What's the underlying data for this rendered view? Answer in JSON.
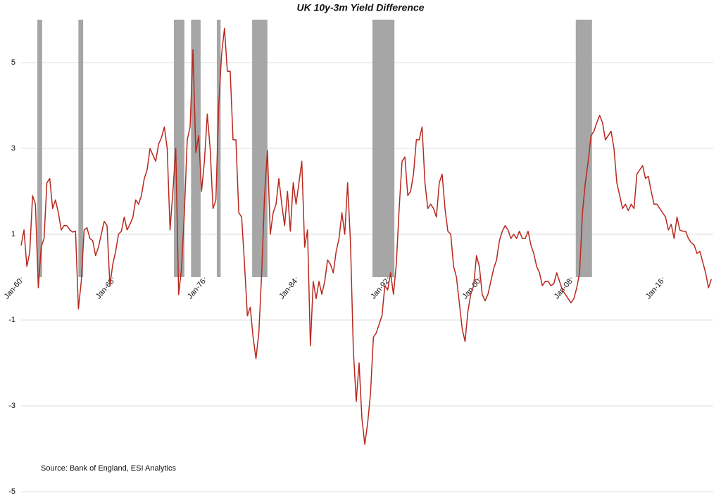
{
  "chart_data": {
    "type": "line",
    "title": "UK 10y-3m Yield Difference",
    "source": "Source: Bank of England, ESI Analytics",
    "x": [
      "1960-01",
      "1960-04",
      "1960-07",
      "1960-10",
      "1961-01",
      "1961-04",
      "1961-07",
      "1961-10",
      "1962-01",
      "1962-04",
      "1962-07",
      "1962-10",
      "1963-01",
      "1963-04",
      "1963-07",
      "1963-10",
      "1964-01",
      "1964-04",
      "1964-07",
      "1964-10",
      "1965-01",
      "1965-04",
      "1965-07",
      "1965-10",
      "1966-01",
      "1966-04",
      "1966-07",
      "1966-10",
      "1967-01",
      "1967-04",
      "1967-07",
      "1967-10",
      "1968-01",
      "1968-04",
      "1968-07",
      "1968-10",
      "1969-01",
      "1969-04",
      "1969-07",
      "1969-10",
      "1970-01",
      "1970-04",
      "1970-07",
      "1970-10",
      "1971-01",
      "1971-04",
      "1971-07",
      "1971-10",
      "1972-01",
      "1972-04",
      "1972-07",
      "1972-10",
      "1973-01",
      "1973-04",
      "1973-07",
      "1973-10",
      "1974-01",
      "1974-04",
      "1974-07",
      "1974-10",
      "1975-01",
      "1975-04",
      "1975-07",
      "1975-10",
      "1976-01",
      "1976-04",
      "1976-07",
      "1976-10",
      "1977-01",
      "1977-04",
      "1977-07",
      "1977-10",
      "1978-01",
      "1978-04",
      "1978-07",
      "1978-10",
      "1979-01",
      "1979-04",
      "1979-07",
      "1979-10",
      "1980-01",
      "1980-04",
      "1980-07",
      "1980-10",
      "1981-01",
      "1981-04",
      "1981-07",
      "1981-10",
      "1982-01",
      "1982-04",
      "1982-07",
      "1982-10",
      "1983-01",
      "1983-04",
      "1983-07",
      "1983-10",
      "1984-01",
      "1984-04",
      "1984-07",
      "1984-10",
      "1985-01",
      "1985-04",
      "1985-07",
      "1985-10",
      "1986-01",
      "1986-04",
      "1986-07",
      "1986-10",
      "1987-01",
      "1987-04",
      "1987-07",
      "1987-10",
      "1988-01",
      "1988-04",
      "1988-07",
      "1988-10",
      "1989-01",
      "1989-04",
      "1989-07",
      "1989-10",
      "1990-01",
      "1990-04",
      "1990-07",
      "1990-10",
      "1991-01",
      "1991-04",
      "1991-07",
      "1991-10",
      "1992-01",
      "1992-04",
      "1992-07",
      "1992-10",
      "1993-01",
      "1993-04",
      "1993-07",
      "1993-10",
      "1994-01",
      "1994-04",
      "1994-07",
      "1994-10",
      "1995-01",
      "1995-04",
      "1995-07",
      "1995-10",
      "1996-01",
      "1996-04",
      "1996-07",
      "1996-10",
      "1997-01",
      "1997-04",
      "1997-07",
      "1997-10",
      "1998-01",
      "1998-04",
      "1998-07",
      "1998-10",
      "1999-01",
      "1999-04",
      "1999-07",
      "1999-10",
      "2000-01",
      "2000-04",
      "2000-07",
      "2000-10",
      "2001-01",
      "2001-04",
      "2001-07",
      "2001-10",
      "2002-01",
      "2002-04",
      "2002-07",
      "2002-10",
      "2003-01",
      "2003-04",
      "2003-07",
      "2003-10",
      "2004-01",
      "2004-04",
      "2004-07",
      "2004-10",
      "2005-01",
      "2005-04",
      "2005-07",
      "2005-10",
      "2006-01",
      "2006-04",
      "2006-07",
      "2006-10",
      "2007-01",
      "2007-04",
      "2007-07",
      "2007-10",
      "2008-01",
      "2008-04",
      "2008-07",
      "2008-10",
      "2009-01",
      "2009-04",
      "2009-07",
      "2009-10",
      "2010-01",
      "2010-04",
      "2010-07",
      "2010-10",
      "2011-01",
      "2011-04",
      "2011-07",
      "2011-10",
      "2012-01",
      "2012-04",
      "2012-07",
      "2012-10",
      "2013-01",
      "2013-04",
      "2013-07",
      "2013-10",
      "2014-01",
      "2014-04",
      "2014-07",
      "2014-10",
      "2015-01",
      "2015-04",
      "2015-07",
      "2015-10",
      "2016-01",
      "2016-04",
      "2016-07",
      "2016-10",
      "2017-01",
      "2017-04",
      "2017-07",
      "2017-10",
      "2018-01",
      "2018-04",
      "2018-07",
      "2018-10",
      "2019-01",
      "2019-04",
      "2019-07",
      "2019-10",
      "2020-01",
      "2020-04"
    ],
    "series": [
      {
        "name": "10y-3m",
        "color": "#b8281e",
        "values": [
          0.74,
          1.1,
          0.25,
          0.57,
          1.9,
          1.7,
          -0.25,
          0.7,
          0.9,
          2.2,
          2.3,
          1.6,
          1.8,
          1.5,
          1.1,
          1.2,
          1.2,
          1.1,
          1.05,
          1.07,
          -0.74,
          -0.1,
          1.1,
          1.15,
          0.9,
          0.85,
          0.5,
          0.7,
          1.0,
          1.3,
          1.2,
          -0.2,
          0.3,
          0.6,
          1.0,
          1.07,
          1.4,
          1.1,
          1.23,
          1.39,
          1.8,
          1.7,
          1.9,
          2.3,
          2.5,
          3.0,
          2.85,
          2.7,
          3.1,
          3.25,
          3.5,
          3.0,
          1.1,
          2.0,
          3.0,
          -0.41,
          0.2,
          1.5,
          3.2,
          3.5,
          5.3,
          2.9,
          3.3,
          2.0,
          2.7,
          3.8,
          3.0,
          1.6,
          1.8,
          4.0,
          5.2,
          5.8,
          4.8,
          4.8,
          3.2,
          3.2,
          1.5,
          1.4,
          0.3,
          -0.9,
          -0.7,
          -1.4,
          -1.9,
          -1.3,
          0.1,
          1.9,
          2.95,
          1.0,
          1.5,
          1.7,
          2.3,
          1.7,
          1.2,
          2.0,
          1.07,
          2.2,
          1.7,
          2.2,
          2.7,
          0.7,
          1.1,
          -1.6,
          -0.1,
          -0.5,
          -0.1,
          -0.4,
          -0.1,
          0.4,
          0.3,
          0.1,
          0.6,
          0.9,
          1.5,
          1.0,
          2.2,
          0.8,
          -1.7,
          -2.9,
          -2.0,
          -3.3,
          -3.9,
          -3.4,
          -2.7,
          -1.4,
          -1.3,
          -1.1,
          -0.9,
          -0.2,
          -0.3,
          0.1,
          -0.4,
          0.3,
          1.6,
          2.7,
          2.8,
          1.9,
          2.0,
          2.4,
          3.2,
          3.2,
          3.5,
          2.2,
          1.6,
          1.7,
          1.6,
          1.4,
          2.2,
          2.4,
          1.6,
          1.07,
          1.0,
          0.25,
          0.0,
          -0.6,
          -1.2,
          -1.5,
          -0.8,
          -0.4,
          -0.2,
          0.5,
          0.25,
          -0.4,
          -0.55,
          -0.4,
          -0.1,
          0.2,
          0.4,
          0.85,
          1.07,
          1.2,
          1.1,
          0.9,
          1.0,
          0.9,
          1.07,
          0.9,
          0.9,
          1.07,
          0.75,
          0.55,
          0.25,
          0.1,
          -0.2,
          -0.1,
          -0.1,
          -0.2,
          -0.15,
          0.1,
          -0.1,
          -0.3,
          -0.4,
          -0.5,
          -0.6,
          -0.5,
          -0.25,
          0.1,
          1.5,
          2.2,
          2.7,
          3.3,
          3.4,
          3.6,
          3.77,
          3.6,
          3.2,
          3.3,
          3.4,
          3.0,
          2.2,
          1.9,
          1.6,
          1.7,
          1.55,
          1.7,
          1.6,
          2.4,
          2.5,
          2.6,
          2.3,
          2.35,
          2.0,
          1.7,
          1.7,
          1.6,
          1.5,
          1.4,
          1.1,
          1.23,
          0.9,
          1.4,
          1.1,
          1.07,
          1.07,
          0.9,
          0.8,
          0.75,
          0.55,
          0.6,
          0.35,
          0.1,
          -0.25,
          -0.05
        ]
      }
    ],
    "shaded_periods": [
      {
        "start": "1961-06",
        "end": "1961-11"
      },
      {
        "start": "1965-01",
        "end": "1965-06"
      },
      {
        "start": "1973-05",
        "end": "1974-04"
      },
      {
        "start": "1974-11",
        "end": "1975-09"
      },
      {
        "start": "1977-02",
        "end": "1977-06"
      },
      {
        "start": "1980-03",
        "end": "1981-07"
      },
      {
        "start": "1990-09",
        "end": "1992-08"
      },
      {
        "start": "2008-06",
        "end": "2009-11"
      }
    ],
    "shade_color": "#a6a6a6",
    "xlim": [
      "1960-01",
      "2020-06"
    ],
    "xticks": [
      {
        "value": "1960-01",
        "label": "Jan-60"
      },
      {
        "value": "1968-01",
        "label": "Jan-68"
      },
      {
        "value": "1976-01",
        "label": "Jan-76"
      },
      {
        "value": "1984-01",
        "label": "Jan-84"
      },
      {
        "value": "1992-01",
        "label": "Jan-92"
      },
      {
        "value": "2000-01",
        "label": "Jan-00"
      },
      {
        "value": "2008-01",
        "label": "Jan-08"
      },
      {
        "value": "2016-01",
        "label": "Jan-16"
      }
    ],
    "ylim": [
      -5,
      6
    ],
    "yticks": [
      -5,
      -3,
      -1,
      1,
      3,
      5
    ],
    "grid": true
  }
}
